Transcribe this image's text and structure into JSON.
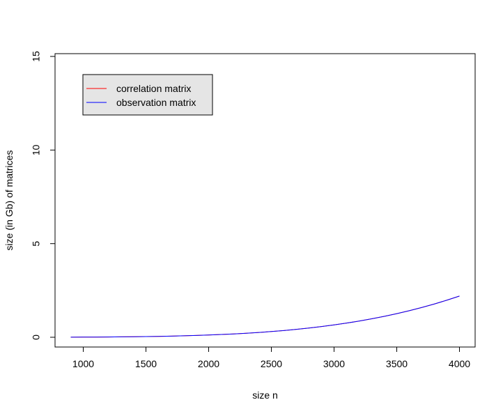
{
  "chart_data": {
    "type": "line",
    "title": "",
    "xlabel": "size n",
    "ylabel": "size (in Gb) of matrices",
    "xlim": [
      780,
      4125
    ],
    "ylim": [
      -0.5,
      15.1
    ],
    "x_ticks": [
      1000,
      1500,
      2000,
      2500,
      3000,
      3500,
      4000
    ],
    "y_ticks": [
      0,
      5,
      10,
      15
    ],
    "grid": false,
    "legend_position": "top-left",
    "series": [
      {
        "name": "correlation matrix",
        "color": "#ff0000",
        "x": [
          900,
          1000,
          1100,
          1200,
          1300,
          1400,
          1500,
          1600,
          1700,
          1800,
          1900,
          2000,
          2100,
          2200,
          2300,
          2400,
          2500,
          2600,
          2700,
          2800,
          2900,
          3000,
          3100,
          3200,
          3300,
          3400,
          3500,
          3600,
          3700,
          3800,
          3900,
          4000
        ],
        "y": [
          0.0049,
          0.0075,
          0.011,
          0.0155,
          0.0213,
          0.0286,
          0.0377,
          0.0488,
          0.0623,
          0.0786,
          0.0979,
          0.1208,
          0.1477,
          0.1791,
          0.2155,
          0.2575,
          0.3056,
          0.3604,
          0.4225,
          0.4926,
          0.5712,
          0.659,
          0.7568,
          0.8651,
          0.9848,
          1.1165,
          1.261,
          1.419,
          1.591,
          1.778,
          1.981,
          2.2
        ]
      },
      {
        "name": "observation matrix",
        "color": "#0000ff",
        "x": [
          900,
          1000,
          1100,
          1200,
          1300,
          1400,
          1500,
          1600,
          1700,
          1800,
          1900,
          2000,
          2100,
          2200,
          2300,
          2400,
          2500,
          2600,
          2700,
          2800,
          2900,
          3000,
          3100,
          3200,
          3300,
          3400,
          3500,
          3600,
          3700,
          3800,
          3900,
          4000
        ],
        "y": [
          0.0049,
          0.0075,
          0.011,
          0.0155,
          0.0213,
          0.0286,
          0.0377,
          0.0488,
          0.0623,
          0.0786,
          0.0979,
          0.1208,
          0.1477,
          0.1791,
          0.2155,
          0.2575,
          0.3056,
          0.3604,
          0.4225,
          0.4926,
          0.5712,
          0.659,
          0.7568,
          0.8651,
          0.9848,
          1.1165,
          1.261,
          1.419,
          1.591,
          1.778,
          1.981,
          2.2
        ]
      }
    ]
  }
}
